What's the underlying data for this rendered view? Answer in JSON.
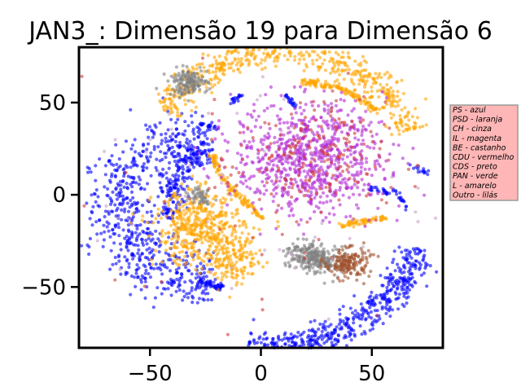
{
  "chart_data": {
    "type": "scatter",
    "title": "JAN3_: Dimensão 19 para Dimensão 6",
    "xlabel": "",
    "ylabel": "",
    "xlim": [
      -82,
      82
    ],
    "ylim": [
      -83,
      80
    ],
    "xticks": [
      {
        "value": -50,
        "label": "−50"
      },
      {
        "value": 0,
        "label": "0"
      },
      {
        "value": 50,
        "label": "50"
      }
    ],
    "yticks": [
      {
        "value": 50,
        "label": "50"
      },
      {
        "value": 0,
        "label": "0"
      },
      {
        "value": -50,
        "label": "−50"
      }
    ],
    "grid": false,
    "legend_position": "outside-right",
    "legend": [
      {
        "text": "PS - azul",
        "color": "#0000ff"
      },
      {
        "text": "PSD - laranja",
        "color": "#ffa500"
      },
      {
        "text": "CH - cinza",
        "color": "#808080"
      },
      {
        "text": "IL - magenta",
        "color": "#ff00ff"
      },
      {
        "text": "BE - castanho",
        "color": "#a52a2a"
      },
      {
        "text": "CDU - vermelho",
        "color": "#ff0000"
      },
      {
        "text": "CDS - preto",
        "color": "#000000"
      },
      {
        "text": "PAN - verde",
        "color": "#008000"
      },
      {
        "text": "L - amarelo",
        "color": "#ffff00"
      },
      {
        "text": "Outro - lilás",
        "color": "#c8a2c8"
      }
    ],
    "legend_box_color": "#ffb6b6",
    "series": [
      {
        "name": "PS - azul",
        "color": "#0000ff",
        "clusters": [
          {
            "kind": "arc",
            "cx": 3,
            "cy": -2,
            "rx": 73,
            "ry": 80,
            "a0": -97,
            "a1": -20,
            "width": 4,
            "n": 520
          },
          {
            "kind": "arc",
            "cx": -20,
            "cy": -8,
            "rx": 44,
            "ry": 40,
            "a0": 92,
            "a1": 268,
            "width": 8,
            "n": 650
          },
          {
            "kind": "arc",
            "cx": -20,
            "cy": -5,
            "rx": 20,
            "ry": 30,
            "a0": 100,
            "a1": 190,
            "width": 3,
            "n": 180
          },
          {
            "kind": "segment",
            "x0": 10,
            "y0": 54,
            "x1": 16,
            "y1": 48,
            "width": 1.5,
            "n": 20
          },
          {
            "kind": "segment",
            "x0": -15,
            "y0": 49,
            "x1": -9,
            "y1": 54,
            "width": 1.5,
            "n": 18
          },
          {
            "kind": "segment",
            "x0": -27,
            "y0": 38,
            "x1": -18,
            "y1": 36,
            "width": 1.5,
            "n": 20
          },
          {
            "kind": "segment",
            "x0": 68,
            "y0": 15,
            "x1": 75,
            "y1": 12,
            "width": 1.5,
            "n": 15
          },
          {
            "kind": "segment",
            "x0": 48,
            "y0": 4,
            "x1": 58,
            "y1": 1,
            "width": 1.2,
            "n": 22
          },
          {
            "kind": "segment",
            "x0": 60,
            "y0": 3,
            "x1": 66,
            "y1": -7,
            "width": 1.2,
            "n": 18
          },
          {
            "kind": "segment",
            "x0": -44,
            "y0": -10,
            "x1": -40,
            "y1": -14,
            "width": 1.5,
            "n": 12
          },
          {
            "kind": "segment",
            "x0": -28,
            "y0": -47,
            "x1": -18,
            "y1": -50,
            "width": 2.5,
            "n": 50
          }
        ]
      },
      {
        "name": "PSD - laranja",
        "color": "#ffa500",
        "clusters": [
          {
            "kind": "arc",
            "cx": 10,
            "cy": 8,
            "rx": 62,
            "ry": 70,
            "a0": 22,
            "a1": 148,
            "width": 4,
            "n": 520
          },
          {
            "kind": "segment",
            "x0": 18,
            "y0": 62,
            "x1": 38,
            "y1": 57,
            "width": 1.5,
            "n": 70
          },
          {
            "kind": "segment",
            "x0": 38,
            "y0": 57,
            "x1": 53,
            "y1": 45,
            "width": 1.5,
            "n": 55
          },
          {
            "kind": "segment",
            "x0": -22,
            "y0": 22,
            "x1": -18,
            "y1": 10,
            "width": 1.5,
            "n": 40
          },
          {
            "kind": "segment",
            "x0": -18,
            "y0": 10,
            "x1": 0,
            "y1": -12,
            "width": 1.8,
            "n": 80
          },
          {
            "kind": "segment",
            "x0": 36,
            "y0": -17,
            "x1": 56,
            "y1": -12,
            "width": 1.5,
            "n": 60
          },
          {
            "kind": "blob",
            "x": -28,
            "y": -18,
            "sx": 10,
            "sy": 10,
            "n": 450
          },
          {
            "kind": "blob",
            "x": -12,
            "y": -35,
            "sx": 6,
            "sy": 7,
            "n": 160
          }
        ]
      },
      {
        "name": "CH - cinza",
        "color": "#808080",
        "clusters": [
          {
            "kind": "blob",
            "x": -33,
            "y": 61,
            "sx": 4.5,
            "sy": 3.5,
            "n": 150
          },
          {
            "kind": "blob",
            "x": -27,
            "y": 0,
            "sx": 2.5,
            "sy": 2.5,
            "n": 50
          },
          {
            "kind": "blob",
            "x": 20,
            "y": -33,
            "sx": 5,
            "sy": 4,
            "n": 160
          },
          {
            "kind": "blob",
            "x": 30,
            "y": -37,
            "sx": 4,
            "sy": 4,
            "n": 90
          }
        ]
      },
      {
        "name": "BE - castanho",
        "color": "#a0522d",
        "clusters": [
          {
            "kind": "blob",
            "x": 39,
            "y": -37,
            "sx": 5,
            "sy": 4,
            "n": 170
          }
        ]
      },
      {
        "name": "IL - magenta",
        "color": "#b22ad6",
        "clusters": [
          {
            "kind": "blob",
            "x": 22,
            "y": 20,
            "sx": 17,
            "sy": 15,
            "n": 800
          }
        ]
      },
      {
        "name": "CDU - vermelho",
        "color": "#d03a3a",
        "clusters": [
          {
            "kind": "blob",
            "x": 22,
            "y": 20,
            "sx": 17,
            "sy": 15,
            "n": 180
          },
          {
            "kind": "scatter",
            "x": 5,
            "y": 0,
            "sx": 35,
            "sy": 35,
            "n": 45
          }
        ]
      },
      {
        "name": "Outro - lilás",
        "color": "#c8a2c8",
        "clusters": [
          {
            "kind": "scatter",
            "x": 0,
            "y": 0,
            "sx": 40,
            "sy": 40,
            "n": 60
          }
        ]
      }
    ]
  }
}
